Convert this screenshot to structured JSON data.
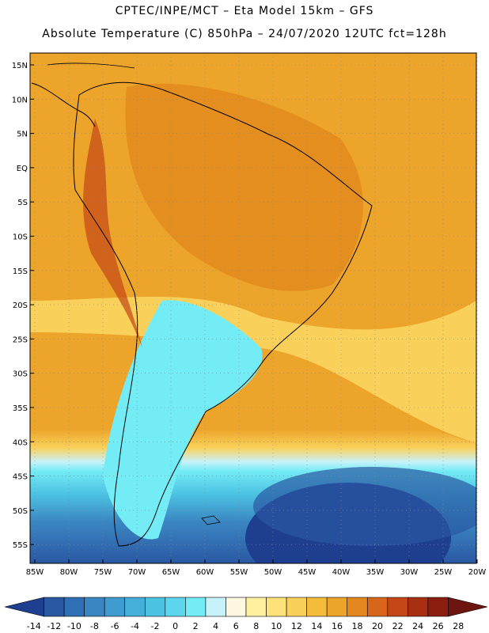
{
  "header": {
    "line1": "CPTEC/INPE/MCT –  Eta Model 15km – GFS",
    "line2": "Absolute Temperature (C) 850hPa – 24/07/2020 12UTC fct=128h"
  },
  "map": {
    "lat_ticks": [
      "15N",
      "10N",
      "5N",
      "EQ",
      "5S",
      "10S",
      "15S",
      "20S",
      "25S",
      "30S",
      "35S",
      "40S",
      "45S",
      "50S",
      "55S"
    ],
    "lon_ticks": [
      "85W",
      "80W",
      "75W",
      "70W",
      "65W",
      "60W",
      "55W",
      "50W",
      "45W",
      "40W",
      "35W",
      "30W",
      "25W",
      "20W"
    ]
  },
  "colorbar": {
    "labels": [
      "-14",
      "-12",
      "-10",
      "-8",
      "-6",
      "-4",
      "-2",
      "0",
      "2",
      "4",
      "6",
      "8",
      "10",
      "12",
      "14",
      "16",
      "18",
      "20",
      "22",
      "24",
      "26",
      "28"
    ],
    "colors": [
      "#1e3f8f",
      "#2a58a3",
      "#2f6fb3",
      "#3a86c2",
      "#3f9bd0",
      "#44afd9",
      "#4cc3e3",
      "#5cd6ec",
      "#74ecf6",
      "#c8f2fa",
      "#fff8e0",
      "#fff0a0",
      "#fde27a",
      "#f9d15a",
      "#f3bc3c",
      "#eca42a",
      "#e3871e",
      "#d8661a",
      "#c54616",
      "#a82f12",
      "#8c1e10",
      "#6e150f"
    ]
  }
}
